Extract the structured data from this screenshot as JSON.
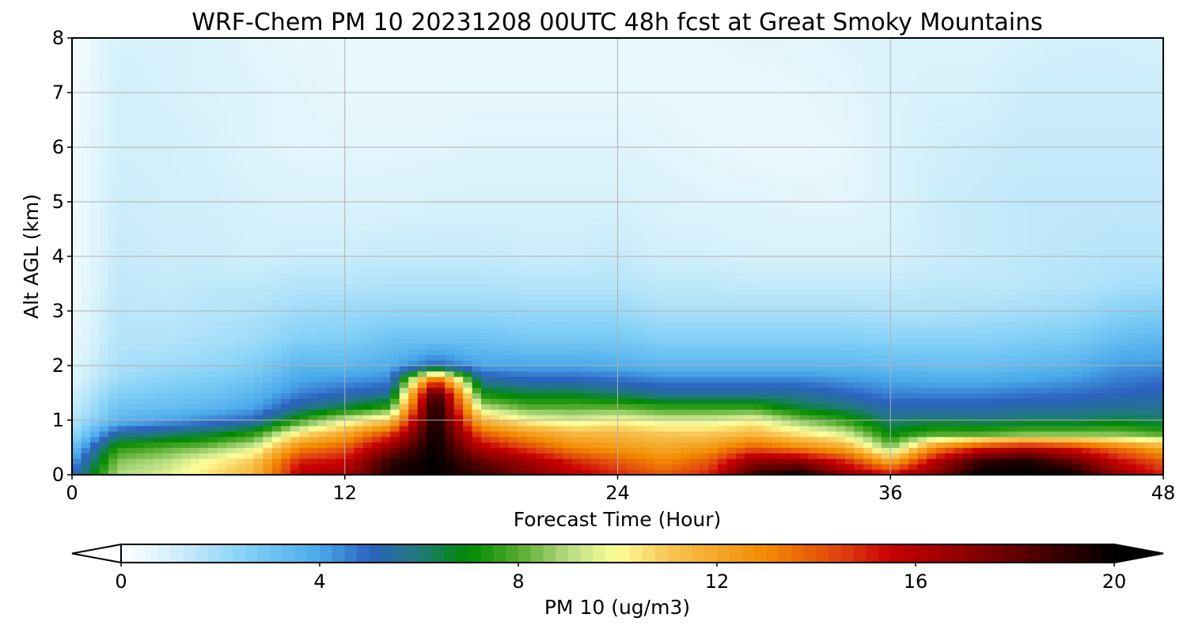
{
  "chart_data": {
    "type": "heatmap",
    "title": "WRF-Chem PM 10  20231208 00UTC 48h fcst at Great Smoky Mountains",
    "xlabel": "Forecast Time (Hour)",
    "ylabel": "Alt AGL (km)",
    "xlim": [
      0,
      48
    ],
    "ylim": [
      0,
      8
    ],
    "x_ticks": [
      "0",
      "12",
      "24",
      "36",
      "48"
    ],
    "y_ticks": [
      "0",
      "1",
      "2",
      "3",
      "4",
      "5",
      "6",
      "7",
      "8"
    ],
    "grid": true,
    "colorbar": {
      "label": "PM 10  (ug/m3)",
      "ticks": [
        "0",
        "4",
        "8",
        "12",
        "16",
        "20"
      ],
      "range": [
        0,
        20
      ],
      "extend": "both",
      "stops": [
        {
          "v": 0,
          "color": "#ffffff"
        },
        {
          "v": 1,
          "color": "#d6f1fb"
        },
        {
          "v": 2.5,
          "color": "#84d1f7"
        },
        {
          "v": 4,
          "color": "#49a9ea"
        },
        {
          "v": 5,
          "color": "#2c62c0"
        },
        {
          "v": 6,
          "color": "#1f7a7a"
        },
        {
          "v": 7,
          "color": "#008a00"
        },
        {
          "v": 8,
          "color": "#52ab2c"
        },
        {
          "v": 9,
          "color": "#b6dc82"
        },
        {
          "v": 10,
          "color": "#ffff99"
        },
        {
          "v": 11,
          "color": "#f7c654"
        },
        {
          "v": 13,
          "color": "#f28a00"
        },
        {
          "v": 14.5,
          "color": "#e04010"
        },
        {
          "v": 15.5,
          "color": "#c80000"
        },
        {
          "v": 17.5,
          "color": "#7a0000"
        },
        {
          "v": 20,
          "color": "#000000"
        }
      ]
    },
    "hours": [
      0,
      2,
      4,
      6,
      8,
      10,
      12,
      14,
      16,
      18,
      20,
      22,
      24,
      26,
      28,
      30,
      32,
      34,
      36,
      38,
      40,
      42,
      44,
      46,
      48
    ],
    "altitudes_km": [
      0,
      0.25,
      0.5,
      0.75,
      1,
      1.25,
      1.5,
      1.75,
      2,
      2.5,
      3,
      3.5,
      4,
      5,
      6,
      7,
      8
    ],
    "values_by_hour": [
      [
        5,
        4,
        3,
        2,
        1.5,
        1.2,
        1,
        0.8,
        0.7,
        0.5,
        0.4,
        0.3,
        0.3,
        0.3,
        0.3,
        0.2,
        0.2
      ],
      [
        9,
        8.5,
        7.5,
        5.5,
        3.5,
        3,
        2.5,
        2,
        1.8,
        1.6,
        1.5,
        1.4,
        1.3,
        1.2,
        1.1,
        1.1,
        1
      ],
      [
        9.5,
        9,
        8,
        6,
        4,
        3.2,
        2.8,
        2.4,
        2,
        1.6,
        1.4,
        1.3,
        1.2,
        1.1,
        1.1,
        1,
        1
      ],
      [
        10.5,
        10,
        8.5,
        6.5,
        4.5,
        3.5,
        3,
        2.6,
        2.2,
        1.8,
        1.6,
        1.4,
        1.2,
        1.1,
        1,
        0.9,
        0.9
      ],
      [
        11.5,
        11,
        9.5,
        7.5,
        5,
        4,
        3.5,
        3,
        2.6,
        2,
        1.7,
        1.4,
        1.1,
        1,
        0.8,
        0.8,
        0.7
      ],
      [
        16,
        15,
        13,
        10.5,
        7.5,
        5.5,
        4.5,
        4,
        3.5,
        2.5,
        2,
        1.6,
        1.2,
        0.9,
        0.7,
        0.7,
        0.6
      ],
      [
        16.5,
        15.5,
        14,
        12,
        9.5,
        6.5,
        5,
        4.2,
        3.5,
        2.6,
        2.1,
        1.6,
        1.2,
        0.9,
        0.7,
        0.6,
        0.6
      ],
      [
        19.5,
        19,
        17,
        14.5,
        11,
        7.5,
        5.5,
        4.5,
        3.8,
        3,
        2.2,
        1.7,
        1.3,
        0.9,
        0.7,
        0.6,
        0.6
      ],
      [
        20,
        20,
        20,
        20,
        20,
        20,
        19,
        14,
        5,
        3,
        2.2,
        1.7,
        1.3,
        1,
        0.7,
        0.6,
        0.6
      ],
      [
        19,
        18,
        16,
        14,
        11.5,
        9,
        7,
        5.5,
        4,
        3,
        2.2,
        1.7,
        1.3,
        1,
        0.8,
        0.6,
        0.6
      ],
      [
        17.5,
        16.5,
        14.5,
        12.5,
        10,
        8,
        6.5,
        5,
        4,
        2.8,
        2.1,
        1.6,
        1.2,
        1,
        0.8,
        0.6,
        0.6
      ],
      [
        16,
        15,
        13,
        11.5,
        9.5,
        8,
        6.5,
        5,
        4,
        2.8,
        2.1,
        1.6,
        1.2,
        1,
        0.8,
        0.6,
        0.6
      ],
      [
        15,
        14,
        12.5,
        11.5,
        10,
        8,
        6,
        4.8,
        3.8,
        2.8,
        2.1,
        1.6,
        1.3,
        1,
        0.8,
        0.6,
        0.6
      ],
      [
        14,
        13,
        12,
        11,
        9.5,
        7.5,
        5.5,
        4.5,
        3.5,
        2.5,
        1.8,
        1.4,
        1.1,
        0.9,
        0.7,
        0.6,
        0.6
      ],
      [
        15,
        14,
        12.5,
        11,
        9.5,
        7.5,
        5.5,
        4.5,
        3.5,
        2.5,
        1.8,
        1.4,
        1.1,
        0.8,
        0.6,
        0.5,
        0.6
      ],
      [
        19,
        17,
        14,
        11.5,
        10,
        7.5,
        5.5,
        4.5,
        3.5,
        2.5,
        1.8,
        1.3,
        1,
        0.8,
        0.5,
        0.5,
        0.7
      ],
      [
        20,
        17,
        13,
        10.5,
        8.5,
        6.5,
        5.5,
        4.5,
        3.5,
        2.5,
        1.8,
        1.3,
        1,
        0.7,
        0.5,
        0.6,
        0.7
      ],
      [
        17,
        15,
        12,
        9.5,
        7.5,
        6,
        5,
        4.2,
        3.5,
        2.5,
        1.8,
        1.3,
        1,
        0.7,
        0.6,
        0.7,
        0.8
      ],
      [
        15.5,
        12,
        8.5,
        7,
        6,
        5.2,
        4.5,
        4,
        3.3,
        2.4,
        1.7,
        1.3,
        1,
        0.9,
        0.9,
        0.9,
        0.9
      ],
      [
        17.5,
        16,
        13,
        8,
        6.2,
        5.2,
        4.5,
        3.8,
        3.2,
        2.4,
        1.7,
        1.4,
        1.2,
        1.2,
        1.1,
        1,
        0.9
      ],
      [
        20,
        19,
        15,
        8,
        6,
        5.2,
        4.5,
        3.8,
        3.2,
        2.4,
        1.8,
        1.4,
        1.3,
        1.3,
        1.2,
        1,
        0.9
      ],
      [
        20,
        19.5,
        16,
        8.5,
        6.2,
        5.4,
        4.7,
        4,
        3.4,
        2.6,
        1.9,
        1.5,
        1.4,
        1.4,
        1.3,
        1.2,
        1
      ],
      [
        20,
        18,
        15,
        8.5,
        6.2,
        5.4,
        4.8,
        4.2,
        3.6,
        2.7,
        2,
        1.6,
        1.5,
        1.4,
        1.3,
        1.2,
        1.1
      ],
      [
        17,
        15.5,
        13.5,
        8.5,
        6.5,
        5.6,
        5,
        4.6,
        4.2,
        3.2,
        2.4,
        1.8,
        1.6,
        1.4,
        1.3,
        1.2,
        1.1
      ],
      [
        15,
        14,
        12,
        8,
        6.2,
        5.6,
        5.2,
        4.8,
        4.3,
        3.5,
        2.6,
        1.9,
        1.6,
        1.4,
        1.3,
        1.2,
        1
      ]
    ]
  }
}
